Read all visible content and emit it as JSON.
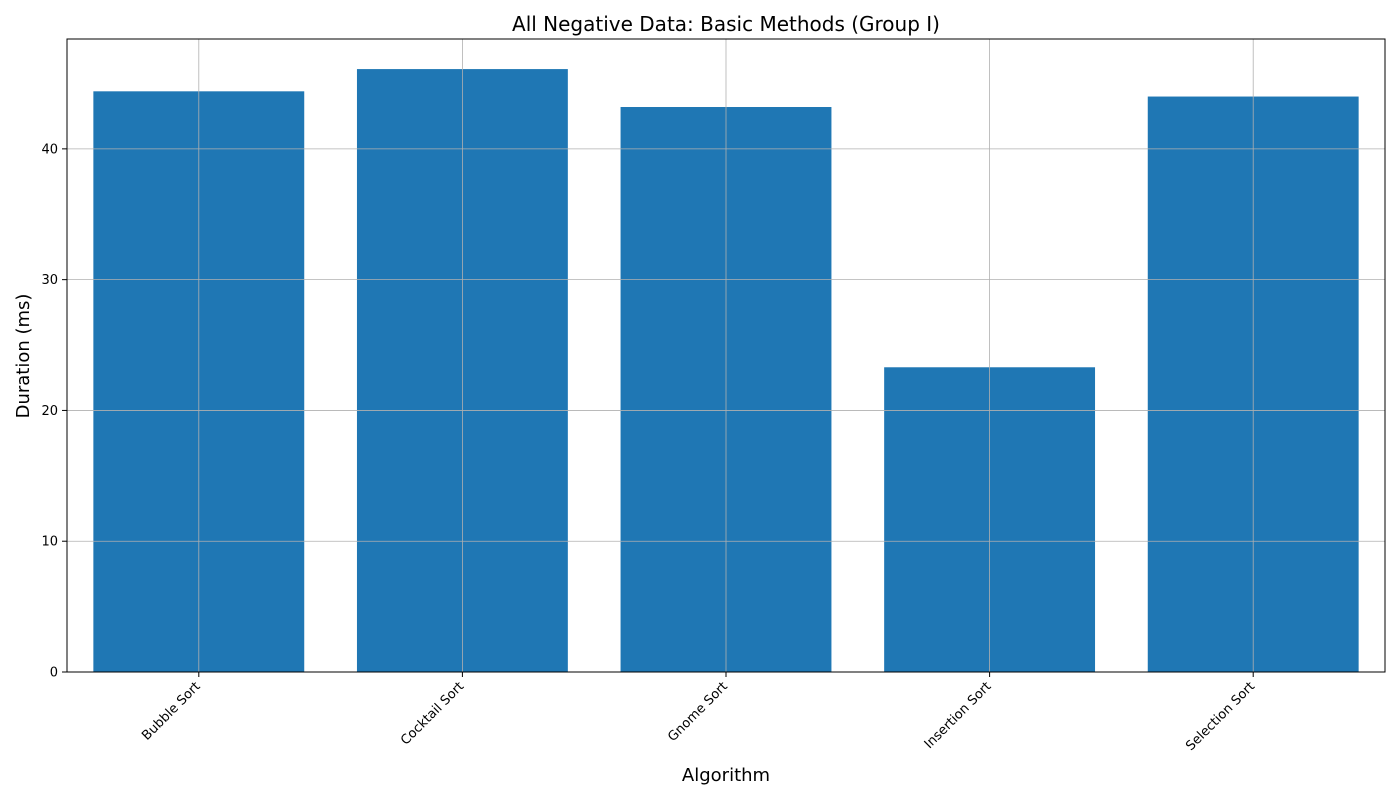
{
  "chart_data": {
    "type": "bar",
    "title": "All Negative Data: Basic Methods (Group I)",
    "xlabel": "Algorithm",
    "ylabel": "Duration (ms)",
    "categories": [
      "Bubble Sort",
      "Cocktail Sort",
      "Gnome Sort",
      "Insertion Sort",
      "Selection Sort"
    ],
    "values": [
      44.4,
      46.1,
      43.2,
      23.3,
      44.0
    ],
    "ylim": [
      0,
      48.4
    ],
    "yticks": [
      0,
      10,
      20,
      30,
      40
    ],
    "grid": true,
    "bar_color": "#1f77b4"
  }
}
